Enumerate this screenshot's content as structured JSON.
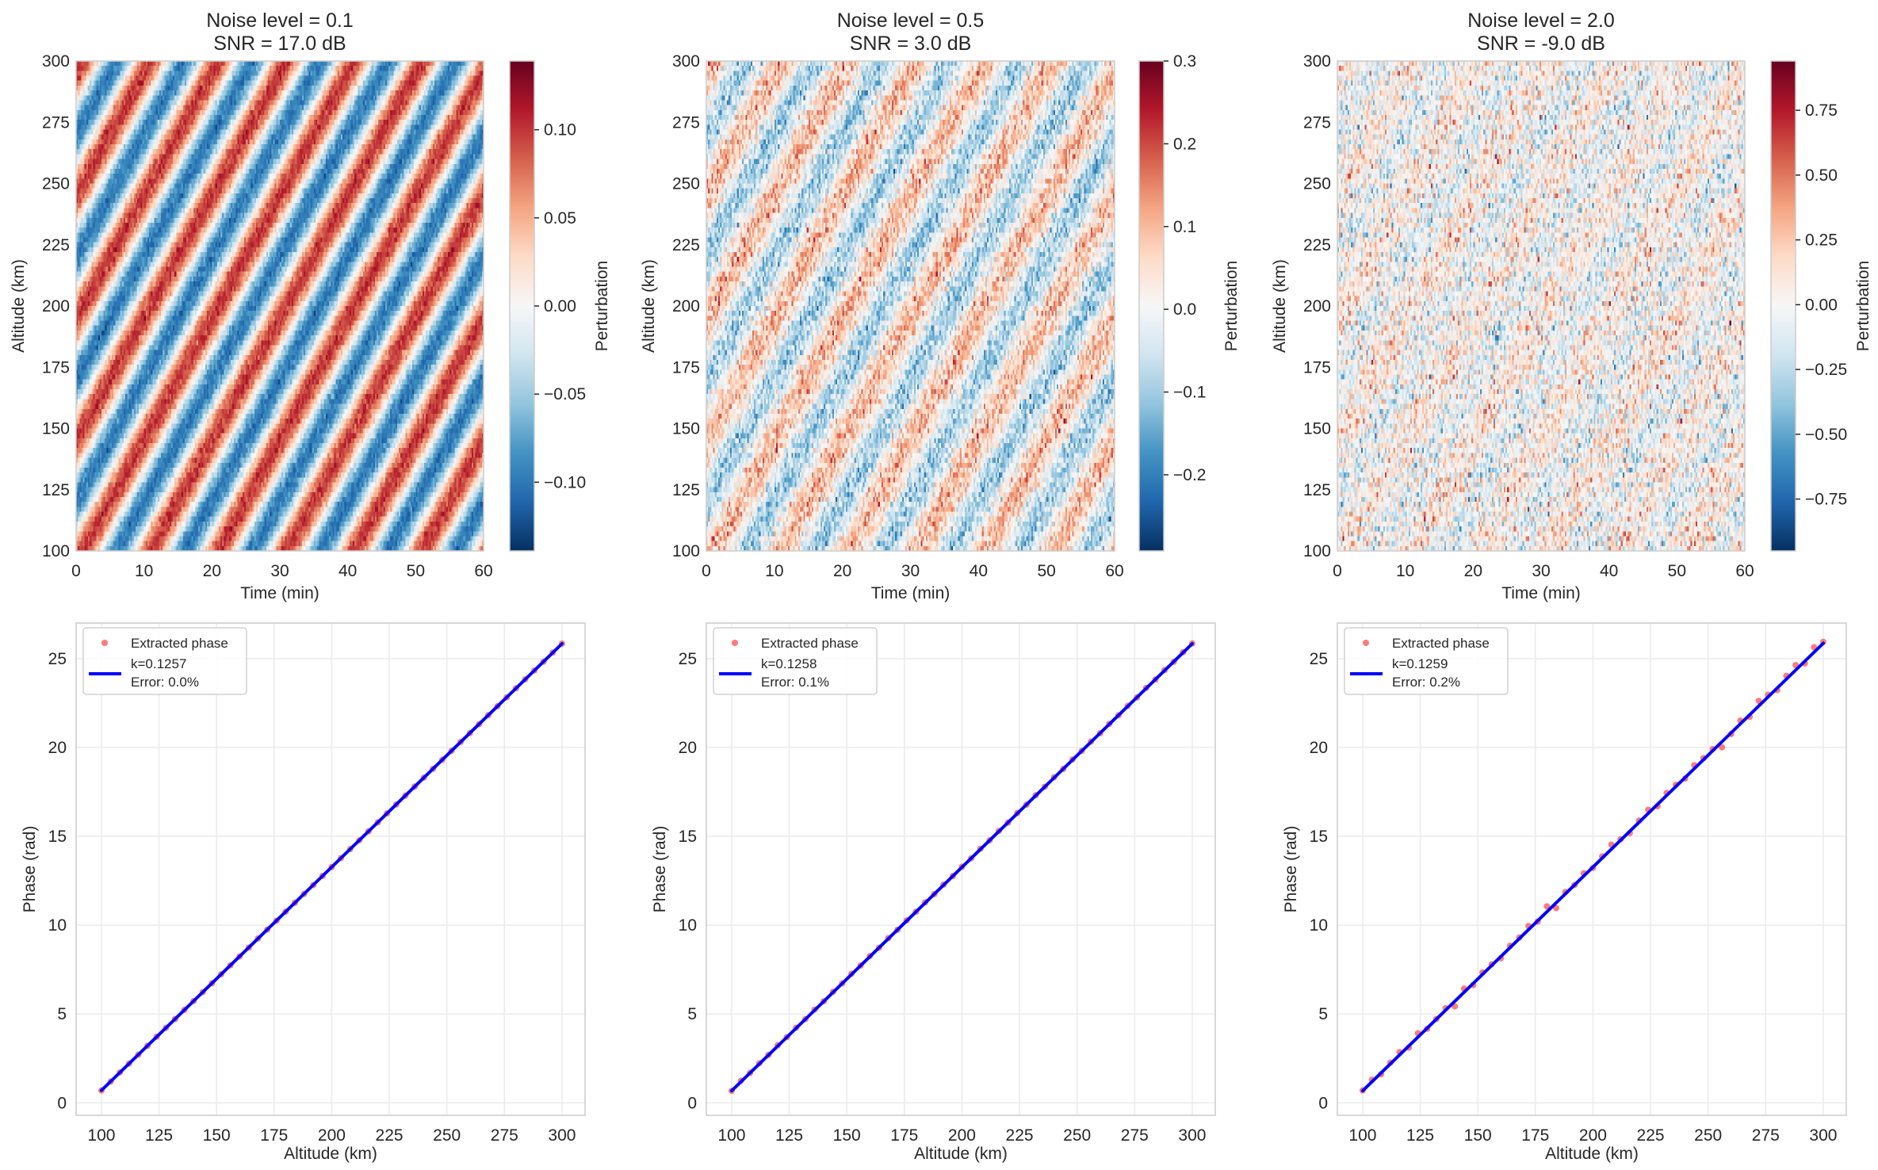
{
  "colors": {
    "colormap": "RdBu_r",
    "scatter": "#ff4d4d",
    "fit_line": "#0000ff",
    "grid": "#ebebeb",
    "spine": "#cccccc"
  },
  "chart_data": [
    {
      "type": "heatmap",
      "title": [
        "Noise level = 0.1",
        "SNR = 17.0 dB"
      ],
      "xlabel": "Time (min)",
      "ylabel": "Altitude (km)",
      "xlim": [
        0,
        60
      ],
      "ylim": [
        100,
        300
      ],
      "xticks": [
        0,
        10,
        20,
        30,
        40,
        50,
        60
      ],
      "xtick_labels": [
        "0",
        "10",
        "20",
        "30",
        "40",
        "50",
        "60"
      ],
      "yticks": [
        100,
        125,
        150,
        175,
        200,
        225,
        250,
        275,
        300
      ],
      "ytick_labels": [
        "100",
        "125",
        "150",
        "175",
        "200",
        "225",
        "250",
        "275",
        "300"
      ],
      "noise_level": 0.1,
      "colorbar": {
        "label": "Perturbation",
        "range": [
          -0.139,
          0.139
        ],
        "ticks": [
          -0.1,
          -0.05,
          0.0,
          0.05,
          0.1
        ],
        "tick_labels": [
          "−0.10",
          "−0.05",
          "0.00",
          "0.05",
          "0.10"
        ]
      },
      "grid": false
    },
    {
      "type": "heatmap",
      "title": [
        "Noise level = 0.5",
        "SNR = 3.0 dB"
      ],
      "xlabel": "Time (min)",
      "ylabel": "Altitude (km)",
      "xlim": [
        0,
        60
      ],
      "ylim": [
        100,
        300
      ],
      "xticks": [
        0,
        10,
        20,
        30,
        40,
        50,
        60
      ],
      "xtick_labels": [
        "0",
        "10",
        "20",
        "30",
        "40",
        "50",
        "60"
      ],
      "yticks": [
        100,
        125,
        150,
        175,
        200,
        225,
        250,
        275,
        300
      ],
      "ytick_labels": [
        "100",
        "125",
        "150",
        "175",
        "200",
        "225",
        "250",
        "275",
        "300"
      ],
      "noise_level": 0.5,
      "colorbar": {
        "label": "Perturbation",
        "range": [
          -0.292,
          0.3
        ],
        "ticks": [
          -0.2,
          -0.1,
          0.0,
          0.1,
          0.2,
          0.3
        ],
        "tick_labels": [
          "−0.2",
          "−0.1",
          "0.0",
          "0.1",
          "0.2",
          "0.3"
        ]
      },
      "grid": false
    },
    {
      "type": "heatmap",
      "title": [
        "Noise level = 2.0",
        "SNR = -9.0 dB"
      ],
      "xlabel": "Time (min)",
      "ylabel": "Altitude (km)",
      "xlim": [
        0,
        60
      ],
      "ylim": [
        100,
        300
      ],
      "xticks": [
        0,
        10,
        20,
        30,
        40,
        50,
        60
      ],
      "xtick_labels": [
        "0",
        "10",
        "20",
        "30",
        "40",
        "50",
        "60"
      ],
      "yticks": [
        100,
        125,
        150,
        175,
        200,
        225,
        250,
        275,
        300
      ],
      "ytick_labels": [
        "100",
        "125",
        "150",
        "175",
        "200",
        "225",
        "250",
        "275",
        "300"
      ],
      "noise_level": 2.0,
      "colorbar": {
        "label": "Perturbation",
        "range": [
          -0.95,
          0.94
        ],
        "ticks": [
          -0.75,
          -0.5,
          -0.25,
          0.0,
          0.25,
          0.5,
          0.75
        ],
        "tick_labels": [
          "−0.75",
          "−0.50",
          "−0.25",
          "0.00",
          "0.25",
          "0.50",
          "0.75"
        ]
      },
      "grid": false
    },
    {
      "type": "scatter",
      "xlabel": "Altitude (km)",
      "ylabel": "Phase (rad)",
      "xlim": [
        89,
        310
      ],
      "ylim": [
        -0.7,
        27.0
      ],
      "xticks": [
        100,
        125,
        150,
        175,
        200,
        225,
        250,
        275,
        300
      ],
      "xtick_labels": [
        "100",
        "125",
        "150",
        "175",
        "200",
        "225",
        "250",
        "275",
        "300"
      ],
      "yticks": [
        0,
        5,
        10,
        15,
        20,
        25
      ],
      "ytick_labels": [
        "0",
        "5",
        "10",
        "15",
        "20",
        "25"
      ],
      "grid": true,
      "legend_position": "top-left",
      "legend": {
        "scatter": "Extracted phase",
        "line": [
          "k=0.1257",
          "Error: 0.0%"
        ]
      },
      "x": [
        100,
        104,
        108,
        112,
        116,
        120,
        124,
        128,
        132,
        136,
        140,
        144,
        148,
        152,
        156,
        160,
        164,
        168,
        172,
        176,
        180,
        184,
        188,
        192,
        196,
        200,
        204,
        208,
        212,
        216,
        220,
        224,
        228,
        232,
        236,
        240,
        244,
        248,
        252,
        256,
        260,
        264,
        268,
        272,
        276,
        280,
        284,
        288,
        292,
        296,
        300
      ],
      "y": [
        0.7,
        1.2,
        1.71,
        2.21,
        2.71,
        3.21,
        3.72,
        4.22,
        4.72,
        5.23,
        5.73,
        6.23,
        6.73,
        7.24,
        7.74,
        8.24,
        8.74,
        9.25,
        9.75,
        10.25,
        10.76,
        11.26,
        11.76,
        12.26,
        12.77,
        13.27,
        13.77,
        14.28,
        14.78,
        15.28,
        15.78,
        16.29,
        16.79,
        17.29,
        17.8,
        18.3,
        18.8,
        19.3,
        19.81,
        20.31,
        20.81,
        21.31,
        21.82,
        22.32,
        22.82,
        23.33,
        23.83,
        24.33,
        24.83,
        25.34,
        25.84
      ],
      "fit": {
        "k": 0.1257,
        "intercept": -11.87
      }
    },
    {
      "type": "scatter",
      "xlabel": "Altitude (km)",
      "ylabel": "Phase (rad)",
      "xlim": [
        89,
        310
      ],
      "ylim": [
        -0.7,
        27.0
      ],
      "xticks": [
        100,
        125,
        150,
        175,
        200,
        225,
        250,
        275,
        300
      ],
      "xtick_labels": [
        "100",
        "125",
        "150",
        "175",
        "200",
        "225",
        "250",
        "275",
        "300"
      ],
      "yticks": [
        0,
        5,
        10,
        15,
        20,
        25
      ],
      "ytick_labels": [
        "0",
        "5",
        "10",
        "15",
        "20",
        "25"
      ],
      "grid": true,
      "legend_position": "top-left",
      "legend": {
        "scatter": "Extracted phase",
        "line": [
          "k=0.1258",
          "Error: 0.1%"
        ]
      },
      "x": [
        100,
        104,
        108,
        112,
        116,
        120,
        124,
        128,
        132,
        136,
        140,
        144,
        148,
        152,
        156,
        160,
        164,
        168,
        172,
        176,
        180,
        184,
        188,
        192,
        196,
        200,
        204,
        208,
        212,
        216,
        220,
        224,
        228,
        232,
        236,
        240,
        244,
        248,
        252,
        256,
        260,
        264,
        268,
        272,
        276,
        280,
        284,
        288,
        292,
        296,
        300
      ],
      "y": [
        0.68,
        1.24,
        1.69,
        2.23,
        2.7,
        3.24,
        3.7,
        4.23,
        4.71,
        5.25,
        5.72,
        6.25,
        6.72,
        7.26,
        7.73,
        8.26,
        8.73,
        9.27,
        9.74,
        10.27,
        10.75,
        11.28,
        11.75,
        12.28,
        12.76,
        13.29,
        13.76,
        14.3,
        14.77,
        15.3,
        15.77,
        16.31,
        16.78,
        17.31,
        17.79,
        18.32,
        18.79,
        19.32,
        19.8,
        20.33,
        20.8,
        21.33,
        21.81,
        22.34,
        22.81,
        23.35,
        23.82,
        24.35,
        24.82,
        25.36,
        25.85
      ],
      "fit": {
        "k": 0.1258,
        "intercept": -11.9
      }
    },
    {
      "type": "scatter",
      "xlabel": "Altitude (km)",
      "ylabel": "Phase (rad)",
      "xlim": [
        89,
        310
      ],
      "ylim": [
        -0.7,
        27.0
      ],
      "xticks": [
        100,
        125,
        150,
        175,
        200,
        225,
        250,
        275,
        300
      ],
      "xtick_labels": [
        "100",
        "125",
        "150",
        "175",
        "200",
        "225",
        "250",
        "275",
        "300"
      ],
      "yticks": [
        0,
        5,
        10,
        15,
        20,
        25
      ],
      "ytick_labels": [
        "0",
        "5",
        "10",
        "15",
        "20",
        "25"
      ],
      "grid": true,
      "legend_position": "top-left",
      "legend": {
        "scatter": "Extracted phase",
        "line": [
          "k=0.1259",
          "Error: 0.2%"
        ]
      },
      "x": [
        100,
        104,
        108,
        112,
        116,
        120,
        124,
        128,
        132,
        136,
        140,
        144,
        148,
        152,
        156,
        160,
        164,
        168,
        172,
        176,
        180,
        184,
        188,
        192,
        196,
        200,
        204,
        208,
        212,
        216,
        220,
        224,
        228,
        232,
        236,
        240,
        244,
        248,
        252,
        256,
        260,
        264,
        268,
        272,
        276,
        280,
        284,
        288,
        292,
        296,
        300
      ],
      "y": [
        0.7,
        1.3,
        1.61,
        2.26,
        2.86,
        3.11,
        3.92,
        4.17,
        4.72,
        5.33,
        5.43,
        6.43,
        6.63,
        7.34,
        7.79,
        8.14,
        8.84,
        9.3,
        9.95,
        10.2,
        11.06,
        10.96,
        11.86,
        12.26,
        12.92,
        13.22,
        13.87,
        14.53,
        14.83,
        15.18,
        15.88,
        16.49,
        16.69,
        17.44,
        17.9,
        18.25,
        19.0,
        19.4,
        19.91,
        20.01,
        20.76,
        21.51,
        21.72,
        22.62,
        22.97,
        23.23,
        24.03,
        24.63,
        24.73,
        25.64,
        25.94
      ],
      "fit": {
        "k": 0.1259,
        "intercept": -11.91
      }
    }
  ]
}
